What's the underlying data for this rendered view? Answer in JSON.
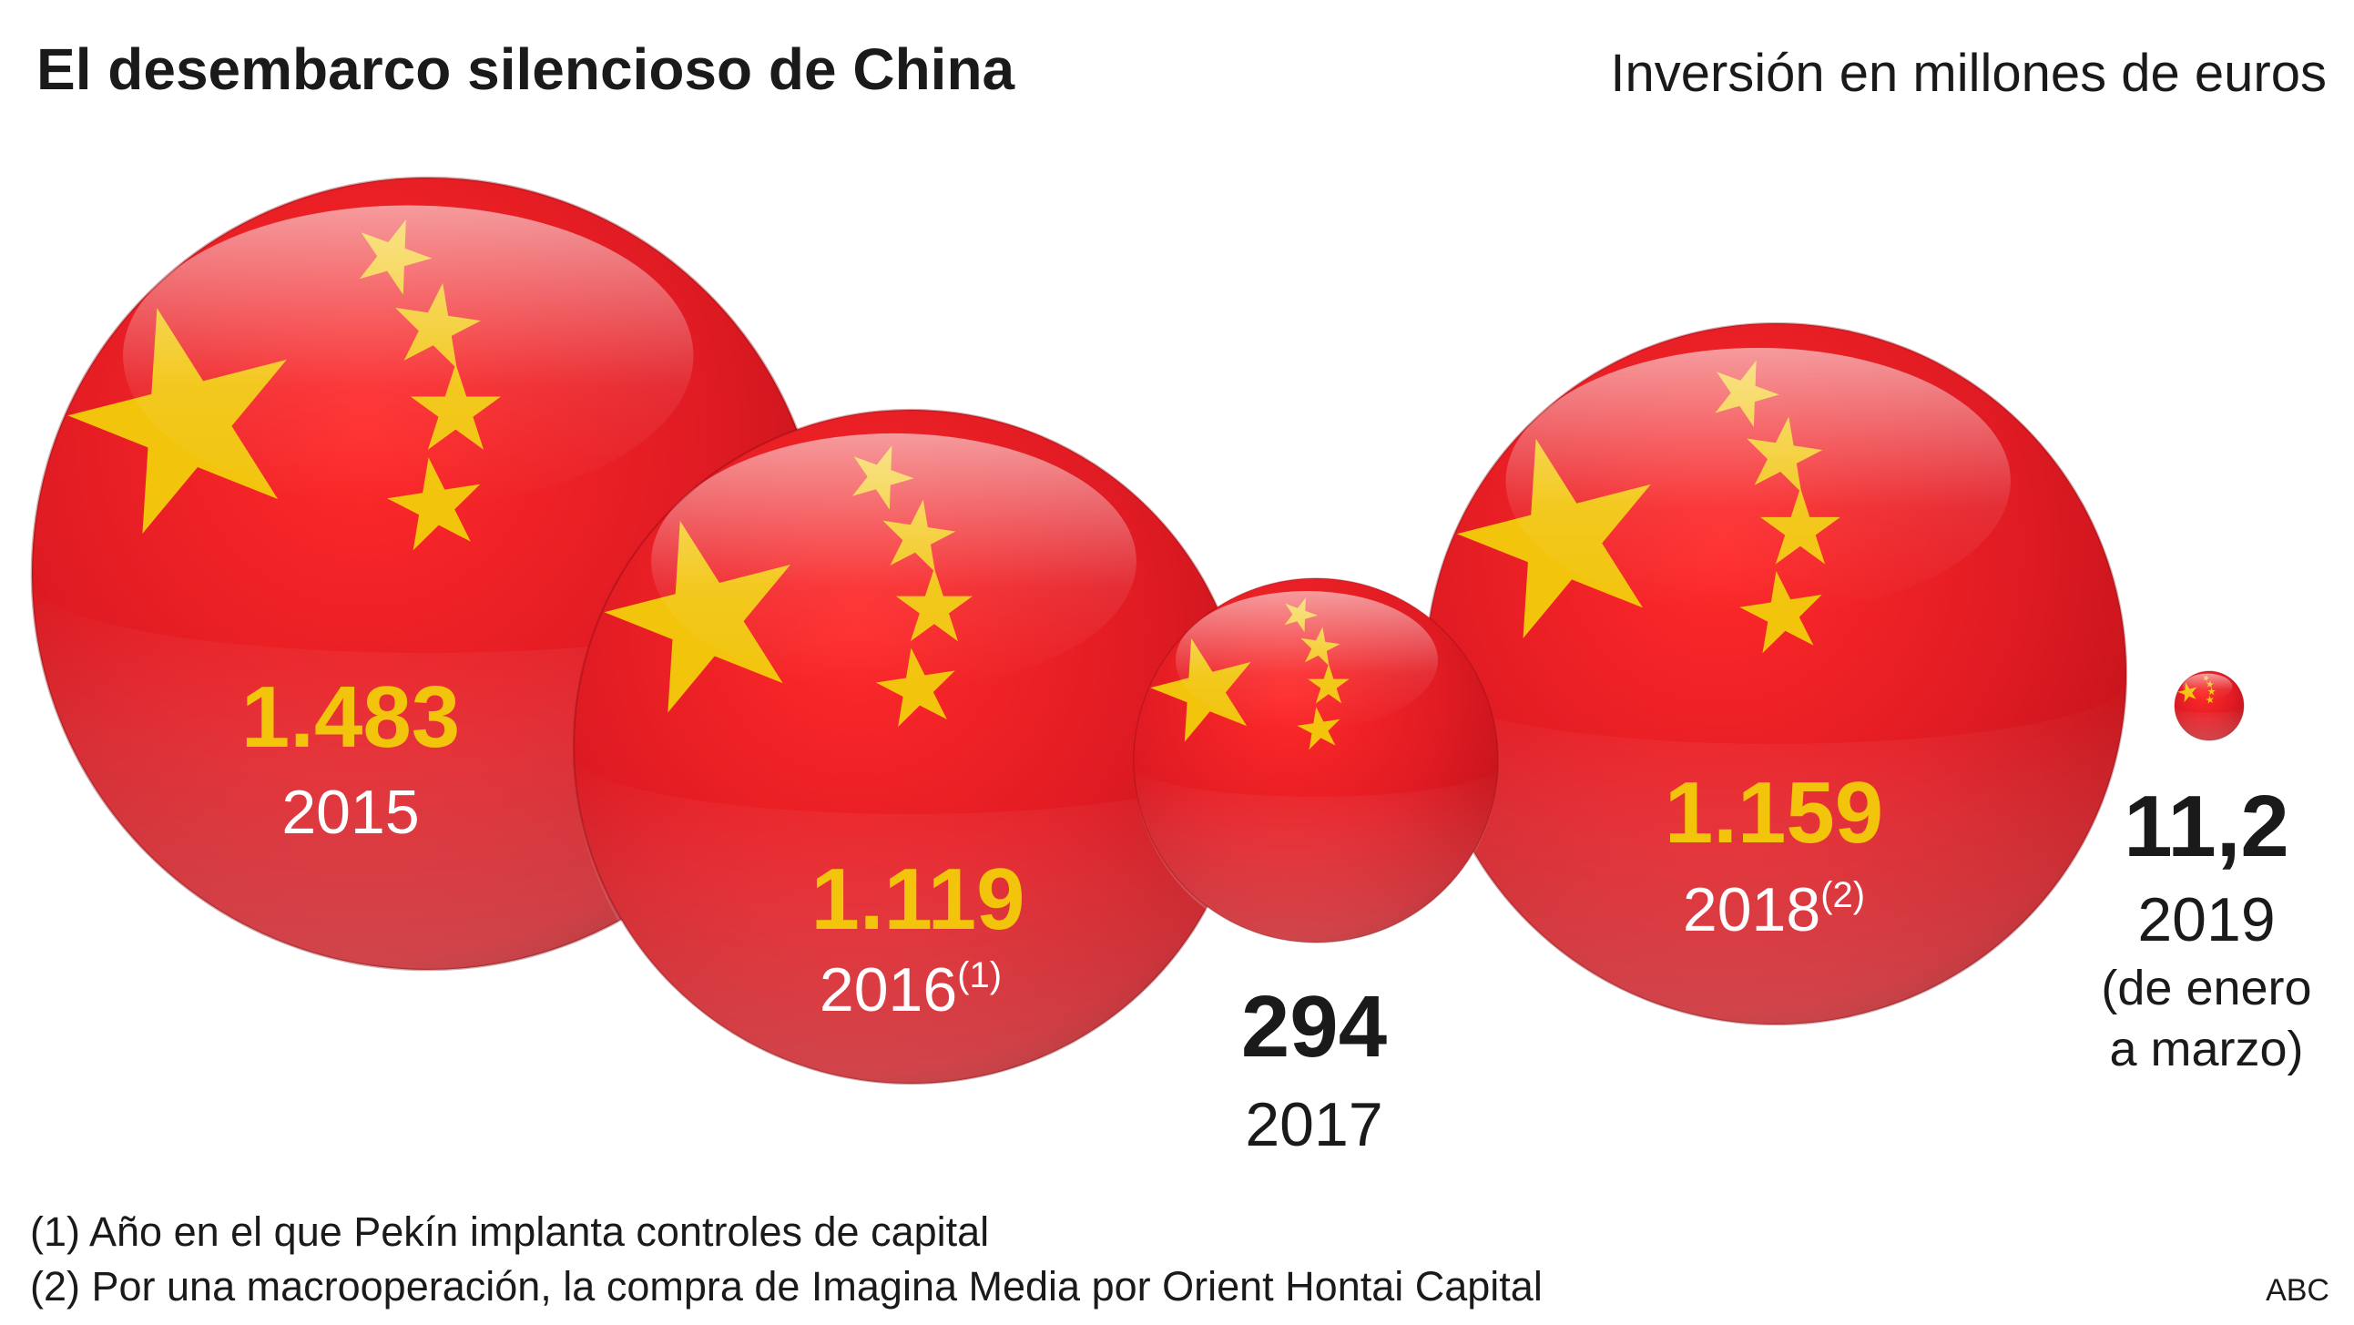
{
  "title": "El desembarco silencioso de China",
  "subtitle": "Inversión en millones de euros",
  "colors": {
    "sphere_red": "#e01b23",
    "star_yellow": "#f2c40c",
    "text_dark": "#1a1a1a",
    "text_white": "#ffffff"
  },
  "chart_data": {
    "type": "bubble",
    "title": "El desembarco silencioso de China",
    "subtitle": "Inversión en millones de euros",
    "unit": "millones de euros",
    "categories": [
      "2015",
      "2016",
      "2017",
      "2018",
      "2019"
    ],
    "values": [
      1483,
      1119,
      294,
      1159,
      11.2
    ],
    "points": [
      {
        "year": "2015",
        "value": 1483,
        "value_label": "1.483",
        "year_label": "2015",
        "marker": "",
        "note": ""
      },
      {
        "year": "2016",
        "value": 1119,
        "value_label": "1.119",
        "year_label": "2016",
        "marker": "(1)",
        "note": ""
      },
      {
        "year": "2017",
        "value": 294,
        "value_label": "294",
        "year_label": "2017",
        "marker": "",
        "note": ""
      },
      {
        "year": "2018",
        "value": 1159,
        "value_label": "1.159",
        "year_label": "2018",
        "marker": "(2)",
        "note": ""
      },
      {
        "year": "2019",
        "value": 11.2,
        "value_label": "11,2",
        "year_label": "2019",
        "marker": "",
        "note_line1": "(de enero",
        "note_line2": "a marzo)"
      }
    ],
    "bubble_icon": "china-flag-sphere"
  },
  "footnotes": [
    "(1) Año en el que Pekín implanta controles de capital",
    "(2) Por una macrooperación, la compra de Imagina Media por Orient Hontai Capital"
  ],
  "source": "ABC"
}
